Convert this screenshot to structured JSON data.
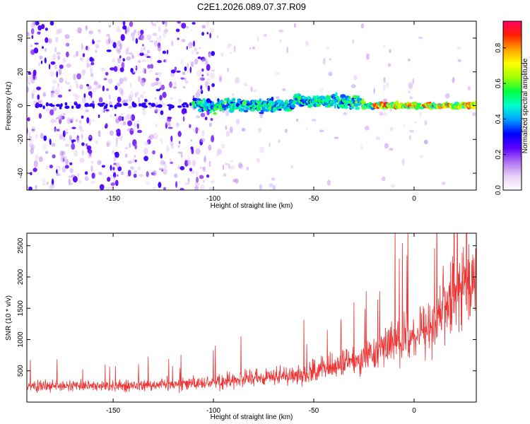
{
  "figure": {
    "title": "C2E1.2026.089.07.37.R09"
  },
  "chart_data": [
    {
      "type": "heatmap",
      "name": "spectrogram",
      "xlabel": "Height of straight line (km)",
      "ylabel": "Frequency (Hz)",
      "xlim": [
        -193,
        31
      ],
      "ylim": [
        -50,
        50
      ],
      "x_ticks": [
        -150,
        -100,
        -50,
        0
      ],
      "y_ticks": [
        -40,
        -20,
        0,
        20,
        40
      ],
      "colorbar": {
        "label": "Normalized spectral amplitude",
        "range": [
          0,
          0.95
        ],
        "ticks": [
          0.0,
          0.2,
          0.4,
          0.6,
          0.8
        ],
        "tick_labels": [
          "0.0",
          "0.2",
          "0.4",
          "0.6",
          "0.8"
        ],
        "colors": [
          "#ffffff",
          "#e8d0f7",
          "#b070f0",
          "#5a00ff",
          "#0000ff",
          "#00a0ff",
          "#00ffd0",
          "#00ff40",
          "#a0ff00",
          "#ffff00",
          "#ffa000",
          "#ff2000",
          "#ff0060"
        ]
      },
      "features": {
        "trace_frequency_hz": 0,
        "trace_start_km": -110,
        "trace_peak_amplitude": 0.9,
        "background_noise_region_km": [
          -193,
          -100
        ]
      }
    },
    {
      "type": "line",
      "name": "snr",
      "xlabel": "Height of straight line (km)",
      "ylabel": "SNR (10 * v/v)",
      "xlim": [
        -193,
        31
      ],
      "ylim": [
        0,
        2700
      ],
      "x_ticks": [
        -150,
        -100,
        -50,
        0
      ],
      "y_ticks": [
        500,
        1000,
        1500,
        2000,
        2500
      ],
      "color": "#ee3333",
      "series": [
        {
          "x": [
            -190,
            -175,
            -160,
            -150,
            -140,
            -125,
            -110,
            -100,
            -90,
            -80,
            -70,
            -60,
            -50,
            -40,
            -30,
            -20,
            -10,
            0,
            5,
            10,
            15,
            20,
            25,
            30
          ],
          "values": [
            250,
            260,
            255,
            260,
            270,
            280,
            300,
            320,
            350,
            380,
            400,
            430,
            480,
            560,
            650,
            800,
            950,
            1050,
            1150,
            1300,
            1550,
            1700,
            1800,
            1900
          ]
        }
      ]
    }
  ]
}
